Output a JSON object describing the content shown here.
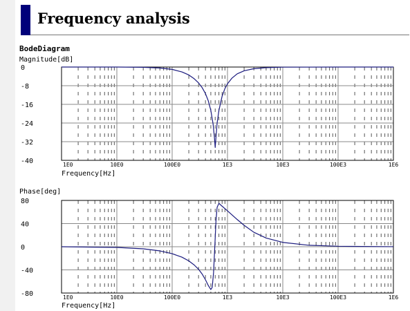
{
  "page": {
    "title": "Frequency analysis",
    "section": "BodeDiagram"
  },
  "colors": {
    "curve": "#1a1a7e",
    "title_bar": "#00007a",
    "grid_major": "#888888",
    "grid_minor": "#555555"
  },
  "chart_data": [
    {
      "type": "line",
      "name": "magnitude",
      "ylabel": "Magnitude[dB]",
      "xlabel": "Frequency[Hz]",
      "xscale": "log",
      "xlim": [
        1,
        1000000
      ],
      "ylim": [
        -40,
        0
      ],
      "yticks": [
        "0",
        "-8",
        "-16",
        "-24",
        "-32",
        "-40"
      ],
      "xticks": [
        "1E0",
        "10E0",
        "100E0",
        "1E3",
        "10E3",
        "100E3",
        "1E6"
      ],
      "grid": true,
      "series": [
        {
          "x": [
            1,
            10,
            30,
            60,
            100,
            150,
            200,
            250,
            300,
            350,
            400,
            450,
            500,
            550,
            580,
            600,
            620,
            650,
            700,
            800,
            900,
            1000,
            1200,
            1500,
            2000,
            3000,
            5000,
            10000,
            100000,
            1000000
          ],
          "values": [
            0,
            0,
            -0.1,
            -0.4,
            -1.0,
            -2.1,
            -3.4,
            -5.0,
            -6.8,
            -8.9,
            -11.4,
            -14.5,
            -18.6,
            -24.5,
            -30.0,
            -34.5,
            -30.0,
            -24.0,
            -18.6,
            -12.5,
            -9.2,
            -7.2,
            -4.8,
            -2.9,
            -1.6,
            -0.7,
            -0.25,
            -0.06,
            0,
            0
          ]
        }
      ]
    },
    {
      "type": "line",
      "name": "phase",
      "ylabel": "Phase[deg]",
      "xlabel": "Frequency[Hz]",
      "xscale": "log",
      "xlim": [
        1,
        1000000
      ],
      "ylim": [
        -80,
        80
      ],
      "yticks": [
        "80",
        "40",
        "0",
        "-40",
        "-80"
      ],
      "xticks": [
        "1E0",
        "10E0",
        "100E0",
        "1E3",
        "10E3",
        "100E3",
        "1E6"
      ],
      "grid": true,
      "series": [
        {
          "x": [
            1,
            10,
            30,
            60,
            100,
            150,
            200,
            250,
            300,
            350,
            400,
            450,
            500,
            530,
            560,
            590,
            620,
            650,
            700,
            800,
            1000,
            1500,
            2000,
            3000,
            5000,
            10000,
            30000,
            100000,
            1000000
          ],
          "values": [
            0,
            -1.2,
            -3.6,
            -7.2,
            -12.0,
            -18.0,
            -24.5,
            -31.5,
            -39.0,
            -47.5,
            -57.0,
            -67.0,
            -74.0,
            -70.0,
            -45.0,
            0.0,
            45.0,
            68.0,
            75.0,
            70.0,
            62.0,
            47.0,
            37.0,
            25.0,
            15.0,
            7.5,
            2.5,
            0.8,
            0.1
          ]
        }
      ]
    }
  ]
}
